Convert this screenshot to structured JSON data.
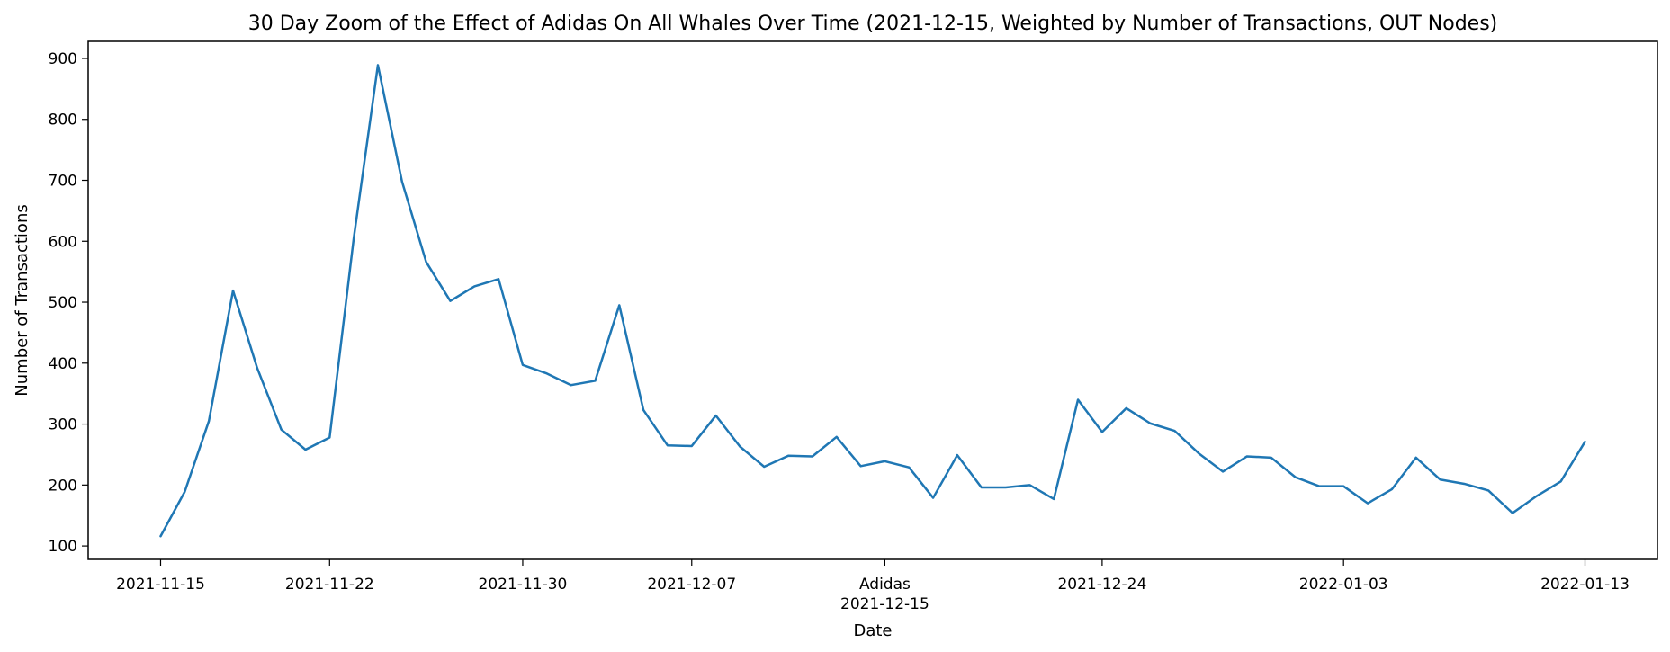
{
  "chart_data": {
    "type": "line",
    "title": "30 Day Zoom of the Effect of Adidas On All Whales Over Time (2021-12-15, Weighted by Number of Transactions, OUT Nodes)",
    "xlabel": "Date",
    "ylabel": "Number of Transactions",
    "x_start": "2021-11-15",
    "x_end": "2022-01-13",
    "xlim": [
      "2021-11-12",
      "2022-01-16"
    ],
    "ylim": [
      78,
      928
    ],
    "yticks": [
      100,
      200,
      300,
      400,
      500,
      600,
      700,
      800,
      900
    ],
    "xticks": [
      {
        "date": "2021-11-15",
        "label": "2021-11-15"
      },
      {
        "date": "2021-11-22",
        "label": "2021-11-22"
      },
      {
        "date": "2021-11-30",
        "label": "2021-11-30"
      },
      {
        "date": "2021-12-07",
        "label": "2021-12-07"
      },
      {
        "date": "2021-12-15",
        "label": "2021-12-15",
        "event": "Adidas"
      },
      {
        "date": "2021-12-24",
        "label": "2021-12-24"
      },
      {
        "date": "2022-01-03",
        "label": "2022-01-03"
      },
      {
        "date": "2022-01-13",
        "label": "2022-01-13"
      }
    ],
    "grid": false,
    "series": [
      {
        "color": "#1f77b4",
        "values": [
          116,
          189,
          305,
          519,
          392,
          291,
          258,
          278,
          605,
          889,
          698,
          566,
          502,
          526,
          538,
          397,
          383,
          364,
          371,
          495,
          323,
          265,
          264,
          314,
          263,
          230,
          248,
          247,
          279,
          231,
          239,
          229,
          179,
          249,
          196,
          196,
          200,
          177,
          340,
          287,
          326,
          301,
          289,
          252,
          222,
          247,
          245,
          213,
          198,
          198,
          170,
          193,
          245,
          209,
          202,
          191,
          154,
          182,
          206,
          271
        ]
      }
    ]
  }
}
